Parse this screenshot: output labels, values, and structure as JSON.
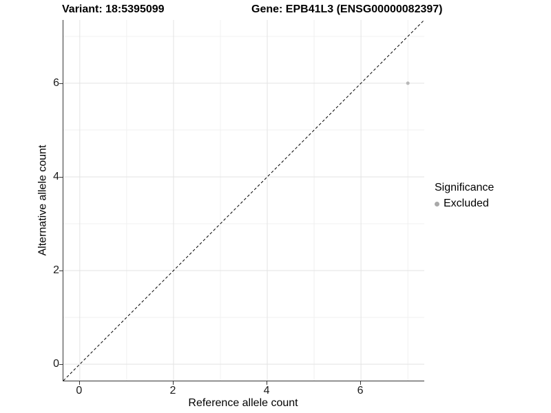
{
  "header": {
    "title_left": "Variant: 18:5395099",
    "title_right": "Gene: EPB41L3 (ENSG00000082397)"
  },
  "chart_data": {
    "type": "scatter",
    "title_left": "Variant: 18:5395099",
    "title_right": "Gene: EPB41L3 (ENSG00000082397)",
    "xlabel": "Reference allele count",
    "ylabel": "Alternative allele count",
    "xlim": [
      -0.35,
      7.35
    ],
    "ylim": [
      -0.35,
      7.35
    ],
    "x_ticks": {
      "major": [
        0,
        2,
        4,
        6
      ],
      "minor": [
        1,
        3,
        5,
        7
      ]
    },
    "y_ticks": {
      "major": [
        0,
        2,
        4,
        6
      ],
      "minor": [
        1,
        3,
        5,
        7
      ]
    },
    "grid": "major+minor",
    "identity_line": {
      "style": "dashed",
      "color": "#000000",
      "from": [
        -0.35,
        -0.35
      ],
      "to": [
        7.35,
        7.35
      ]
    },
    "series": [
      {
        "name": "Excluded",
        "color": "#b8b8b8",
        "point_radius": 2.5,
        "points": [
          [
            7,
            6
          ]
        ]
      }
    ],
    "legend": {
      "title": "Significance",
      "position": "right",
      "items": [
        {
          "label": "Excluded",
          "color": "#a9a9a9"
        }
      ]
    }
  },
  "colors": {
    "background": "#ffffff",
    "axis_line": "#333333",
    "grid_major": "#e3e3e3",
    "grid_minor": "#f0f0f0",
    "text": "#000000"
  }
}
